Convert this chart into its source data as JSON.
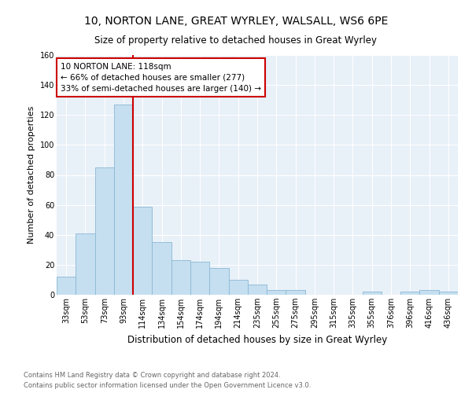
{
  "title": "10, NORTON LANE, GREAT WYRLEY, WALSALL, WS6 6PE",
  "subtitle": "Size of property relative to detached houses in Great Wyrley",
  "xlabel": "Distribution of detached houses by size in Great Wyrley",
  "ylabel": "Number of detached properties",
  "categories": [
    "33sqm",
    "53sqm",
    "73sqm",
    "93sqm",
    "114sqm",
    "134sqm",
    "154sqm",
    "174sqm",
    "194sqm",
    "214sqm",
    "235sqm",
    "255sqm",
    "275sqm",
    "295sqm",
    "315sqm",
    "335sqm",
    "355sqm",
    "376sqm",
    "396sqm",
    "416sqm",
    "436sqm"
  ],
  "bar_heights": [
    12,
    41,
    85,
    127,
    59,
    35,
    23,
    22,
    18,
    10,
    7,
    3,
    3,
    0,
    0,
    0,
    2,
    0,
    2,
    3,
    2
  ],
  "bar_color": "#c5dff0",
  "bar_edge_color": "#8ab8d4",
  "vline_color": "#cc0000",
  "vline_x_index": 4,
  "annotation_title": "10 NORTON LANE: 118sqm",
  "annotation_line1": "← 66% of detached houses are smaller (277)",
  "annotation_line2": "33% of semi-detached houses are larger (140) →",
  "annotation_box_color": "white",
  "annotation_box_edge": "#cc0000",
  "ylim": [
    0,
    160
  ],
  "yticks": [
    0,
    20,
    40,
    60,
    80,
    100,
    120,
    140,
    160
  ],
  "footnote1": "Contains HM Land Registry data © Crown copyright and database right 2024.",
  "footnote2": "Contains public sector information licensed under the Open Government Licence v3.0.",
  "bg_color": "#e8f0f8",
  "grid_color": "#ffffff",
  "title_fontsize": 10,
  "subtitle_fontsize": 8.5,
  "ylabel_fontsize": 8,
  "xlabel_fontsize": 8.5,
  "tick_fontsize": 7,
  "footnote_fontsize": 6,
  "footnote_color": "#666666"
}
